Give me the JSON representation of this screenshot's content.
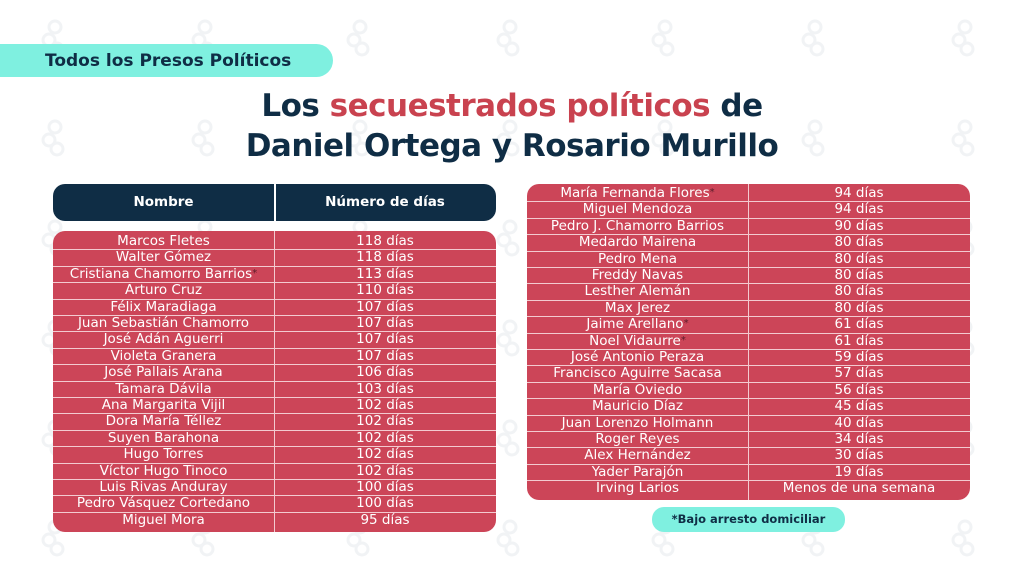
{
  "tag": "Todos los Presos Políticos",
  "title": {
    "line1_a": "Los ",
    "line1_red": "secuestrados políticos",
    "line1_b": " de",
    "line2": "Daniel Ortega y Rosario Murillo"
  },
  "table_header": {
    "col1": "Nombre",
    "col2": "Número de días"
  },
  "left_rows": [
    {
      "name": "Marcos Fletes",
      "days": "118 días"
    },
    {
      "name": "Walter Gómez",
      "days": "118 días"
    },
    {
      "name": "Cristiana Chamorro Barrios",
      "mark": "*",
      "days": "113 días"
    },
    {
      "name": "Arturo Cruz",
      "days": "110 días"
    },
    {
      "name": "Félix Maradiaga",
      "days": "107 días"
    },
    {
      "name": "Juan Sebastián Chamorro",
      "days": "107 días"
    },
    {
      "name": "José Adán Aguerri",
      "days": "107 días"
    },
    {
      "name": "Violeta Granera",
      "days": "107 días"
    },
    {
      "name": "José Pallais Arana",
      "days": "106 días"
    },
    {
      "name": "Tamara Dávila",
      "days": "103 días"
    },
    {
      "name": "Ana Margarita Vijil",
      "days": "102 días"
    },
    {
      "name": "Dora María Téllez",
      "days": "102 días"
    },
    {
      "name": "Suyen Barahona",
      "days": "102 días"
    },
    {
      "name": "Hugo Torres",
      "days": "102 días"
    },
    {
      "name": "Víctor Hugo Tinoco",
      "days": "102 días"
    },
    {
      "name": "Luis Rivas Anduray",
      "days": "100 días"
    },
    {
      "name": "Pedro Vásquez Cortedano",
      "days": "100 días"
    },
    {
      "name": "Miguel Mora",
      "days": "95 días"
    }
  ],
  "right_rows": [
    {
      "name": "María Fernanda Flores",
      "mark": "*",
      "days": "94 días"
    },
    {
      "name": "Miguel Mendoza",
      "days": "94 días"
    },
    {
      "name": "Pedro J. Chamorro Barrios",
      "days": "90 días"
    },
    {
      "name": "Medardo Mairena",
      "days": "80 días"
    },
    {
      "name": "Pedro Mena",
      "days": "80 días"
    },
    {
      "name": "Freddy Navas",
      "days": "80 días"
    },
    {
      "name": "Lesther Alemán",
      "days": "80 días"
    },
    {
      "name": "Max Jerez",
      "days": "80 días"
    },
    {
      "name": "Jaime Arellano",
      "mark": "*",
      "days": "61 días"
    },
    {
      "name": "Noel Vidaurre",
      "mark": "*",
      "days": "61 días"
    },
    {
      "name": "José Antonio Peraza",
      "days": "59 días"
    },
    {
      "name": "Francisco Aguirre Sacasa",
      "days": "57 días"
    },
    {
      "name": "María Oviedo",
      "days": "56 días"
    },
    {
      "name": "Mauricio Díaz",
      "days": "45 días"
    },
    {
      "name": "Juan Lorenzo Holmann",
      "days": "40 días"
    },
    {
      "name": "Roger Reyes",
      "days": "34 días"
    },
    {
      "name": "Alex Hernández",
      "days": "30 días"
    },
    {
      "name": "Yader Parajón",
      "days": "19 días"
    },
    {
      "name": "Irving Larios",
      "days": "Menos de una semana"
    }
  ],
  "footnote": "*Bajo arresto domiciliar",
  "colors": {
    "navy": "#0f2d45",
    "red": "#cc4558",
    "title_red": "#c9424f",
    "mint": "#7ff0e0"
  },
  "decor_icon": "faint-circles-pattern-icon"
}
